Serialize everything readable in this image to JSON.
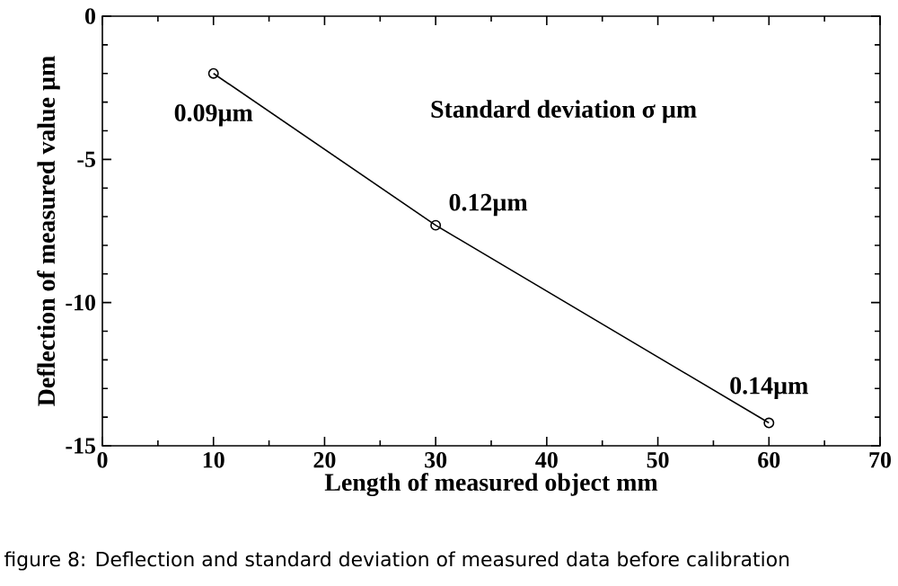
{
  "chart_data": {
    "type": "line",
    "xlabel": "Length of measured object  mm",
    "ylabel": "Deflection of measured value  µm",
    "x": [
      10,
      30,
      60
    ],
    "series": [
      {
        "color": "#000000",
        "values": [
          -2.0,
          -7.3,
          -14.2
        ]
      }
    ],
    "xlim": [
      0,
      70
    ],
    "xticks": [
      0,
      10,
      20,
      30,
      40,
      50,
      60,
      70
    ],
    "ylim": [
      -15,
      0
    ],
    "yticks": [
      -15,
      -10,
      -5,
      0
    ],
    "marker": "circle",
    "line_style": "solid",
    "annotations": [
      {
        "text": "0.09µm",
        "x": 10,
        "y": -2.0
      },
      {
        "text": "0.12µm",
        "x": 30,
        "y": -7.3
      },
      {
        "text": "0.14µm",
        "x": 60,
        "y": -14.2
      },
      "Standard deviation σ µm",
      "figure 8: Deflection and standard deviation of measured data before calibration"
    ]
  }
}
